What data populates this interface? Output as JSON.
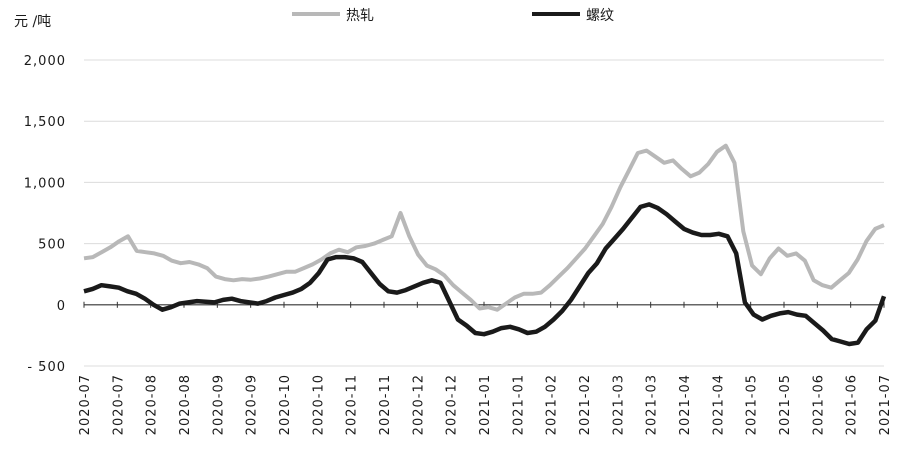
{
  "chart_data": {
    "type": "line",
    "unit_label": "元 /吨",
    "ylim": [
      -500,
      2000
    ],
    "yticks": [
      -500,
      0,
      500,
      1000,
      1500,
      2000
    ],
    "ytick_labels": [
      "- 500",
      "0",
      "500",
      "1,000",
      "1,500",
      "2,000"
    ],
    "xtick_labels": [
      "2020-07",
      "2020-07",
      "2020-08",
      "2020-08",
      "2020-09",
      "2020-09",
      "2020-10",
      "2020-10",
      "2020-11",
      "2020-11",
      "2020-12",
      "2020-12",
      "2021-01",
      "2021-01",
      "2021-02",
      "2021-02",
      "2021-03",
      "2021-03",
      "2021-04",
      "2021-04",
      "2021-05",
      "2021-05",
      "2021-06",
      "2021-06",
      "2021-07"
    ],
    "legend_position": "top-center",
    "grid": true,
    "series": [
      {
        "name": "热轧",
        "color": "#b8b8b8",
        "values": [
          380,
          390,
          430,
          470,
          520,
          560,
          440,
          430,
          420,
          400,
          360,
          340,
          350,
          330,
          300,
          230,
          210,
          200,
          210,
          205,
          215,
          230,
          250,
          270,
          270,
          300,
          330,
          370,
          420,
          450,
          430,
          470,
          480,
          500,
          530,
          560,
          750,
          560,
          410,
          320,
          290,
          240,
          160,
          100,
          40,
          -30,
          -20,
          -40,
          10,
          60,
          90,
          90,
          100,
          160,
          230,
          300,
          380,
          460,
          560,
          660,
          800,
          960,
          1100,
          1240,
          1260,
          1210,
          1160,
          1180,
          1110,
          1050,
          1080,
          1150,
          1250,
          1300,
          1160,
          600,
          320,
          250,
          380,
          460,
          400,
          420,
          360,
          200,
          160,
          140,
          200,
          260,
          370,
          520,
          620,
          650
        ]
      },
      {
        "name": "螺纹",
        "color": "#1a1a1a",
        "values": [
          110,
          130,
          160,
          150,
          140,
          110,
          90,
          50,
          0,
          -40,
          -20,
          10,
          20,
          30,
          25,
          20,
          40,
          50,
          30,
          20,
          10,
          30,
          60,
          80,
          100,
          130,
          180,
          260,
          370,
          390,
          390,
          380,
          350,
          260,
          170,
          110,
          100,
          120,
          150,
          180,
          200,
          180,
          30,
          -120,
          -170,
          -230,
          -240,
          -220,
          -190,
          -180,
          -200,
          -230,
          -220,
          -180,
          -120,
          -50,
          40,
          150,
          260,
          340,
          460,
          540,
          620,
          710,
          800,
          820,
          790,
          740,
          680,
          620,
          590,
          570,
          570,
          580,
          560,
          420,
          20,
          -80,
          -120,
          -90,
          -70,
          -60,
          -80,
          -90,
          -150,
          -210,
          -280,
          -300,
          -320,
          -310,
          -200,
          -130,
          70
        ]
      }
    ]
  }
}
